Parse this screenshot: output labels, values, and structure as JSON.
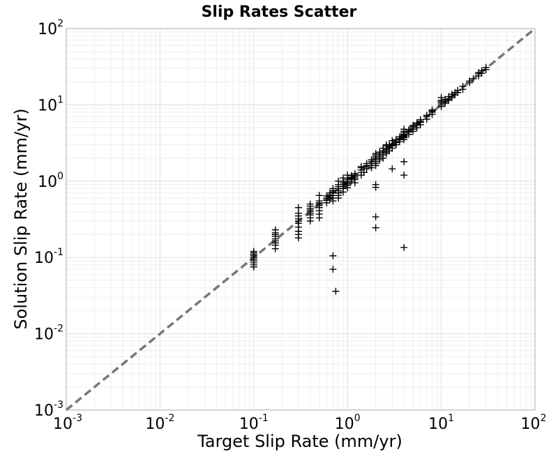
{
  "chart_data": {
    "type": "scatter",
    "title": "Slip Rates Scatter",
    "xlabel": "Target Slip Rate (mm/yr)",
    "ylabel": "Solution Slip Rate (mm/yr)",
    "xscale": "log",
    "yscale": "log",
    "xlim": [
      0.001,
      100
    ],
    "ylim": [
      0.001,
      100
    ],
    "grid": true,
    "legend": "none",
    "marker": "plus",
    "x_ticks": [
      {
        "value": 0.001,
        "base": "10",
        "exp": "-3"
      },
      {
        "value": 0.01,
        "base": "10",
        "exp": "-2"
      },
      {
        "value": 0.1,
        "base": "10",
        "exp": "-1"
      },
      {
        "value": 1,
        "base": "10",
        "exp": "0"
      },
      {
        "value": 10,
        "base": "10",
        "exp": "1"
      },
      {
        "value": 100,
        "base": "10",
        "exp": "2"
      }
    ],
    "y_ticks": [
      {
        "value": 0.001,
        "base": "10",
        "exp": "-3"
      },
      {
        "value": 0.01,
        "base": "10",
        "exp": "-2"
      },
      {
        "value": 0.1,
        "base": "10",
        "exp": "-1"
      },
      {
        "value": 1,
        "base": "10",
        "exp": "0"
      },
      {
        "value": 10,
        "base": "10",
        "exp": "1"
      },
      {
        "value": 100,
        "base": "10",
        "exp": "2"
      }
    ],
    "reference_line": {
      "x": [
        0.001,
        100
      ],
      "y": [
        0.001,
        100
      ],
      "style": "dashed",
      "color": "#777777"
    },
    "colors": {
      "points": "#000000",
      "reference_line": "#777777",
      "grid": "#e6e6e6",
      "axes": "#aaaaaa"
    },
    "series": [
      {
        "x": [
          0.1,
          0.1,
          0.1,
          0.1,
          0.1,
          0.1,
          0.1,
          0.1,
          0.1,
          0.1,
          0.17,
          0.17,
          0.17,
          0.17,
          0.17,
          0.17,
          0.17,
          0.17,
          0.17,
          0.3,
          0.3,
          0.3,
          0.3,
          0.3,
          0.3,
          0.3,
          0.3,
          0.3,
          0.3,
          0.4,
          0.4,
          0.4,
          0.4,
          0.4,
          0.4,
          0.4,
          0.4,
          0.4,
          0.5,
          0.5,
          0.5,
          0.5,
          0.5,
          0.5,
          0.5,
          0.5,
          0.5,
          0.6,
          0.6,
          0.6,
          0.6,
          0.65,
          0.65,
          0.65,
          0.65,
          0.7,
          0.7,
          0.7,
          0.7,
          0.7,
          0.7,
          0.7,
          0.8,
          0.8,
          0.8,
          0.8,
          0.8,
          0.8,
          0.8,
          0.8,
          0.9,
          0.9,
          0.9,
          0.9,
          0.9,
          0.9,
          0.9,
          1.0,
          1.0,
          1.0,
          1.0,
          1.0,
          1.0,
          1.0,
          1.0,
          1.1,
          1.1,
          1.1,
          1.1,
          1.2,
          1.2,
          1.2,
          1.2,
          1.2,
          1.4,
          1.4,
          1.4,
          1.4,
          1.4,
          1.6,
          1.6,
          1.6,
          1.6,
          1.8,
          1.8,
          1.8,
          1.8,
          1.8,
          2.0,
          2.0,
          2.0,
          2.0,
          2.0,
          2.0,
          2.0,
          2.0,
          2.0,
          2.2,
          2.2,
          2.2,
          2.2,
          2.2,
          2.4,
          2.4,
          2.4,
          2.4,
          2.4,
          2.6,
          2.6,
          2.6,
          2.6,
          2.6,
          2.6,
          2.8,
          2.8,
          2.8,
          2.8,
          3.0,
          3.0,
          3.0,
          3.0,
          3.0,
          3.3,
          3.3,
          3.3,
          3.3,
          3.6,
          3.6,
          3.6,
          3.6,
          4.0,
          4.0,
          4.0,
          4.0,
          4.0,
          4.0,
          4.0,
          4.0,
          4.0,
          4.5,
          4.5,
          4.5,
          4.5,
          5.0,
          5.0,
          5.0,
          5.0,
          5.0,
          5.5,
          5.5,
          5.5,
          5.5,
          6.0,
          6.0,
          6.0,
          6.0,
          7.0,
          7.0,
          7.0,
          8.0,
          8.0,
          8.0,
          8.0,
          10.0,
          10.0,
          10.0,
          10.0,
          10.0,
          10.0,
          11.0,
          11.0,
          11.0,
          12.0,
          12.0,
          12.0,
          13.0,
          13.0,
          13.0,
          14.0,
          14.0,
          15.0,
          15.0,
          17.0,
          17.0,
          20.0,
          20.0,
          22.0,
          25.0,
          25.0,
          25.0,
          27.0,
          27.0,
          30.0,
          30.0,
          0.7,
          0.7,
          0.75,
          2.0,
          2.0,
          4.0,
          4.0,
          4.0,
          3.0,
          2.0,
          1.5,
          1.2
        ],
        "y": [
          0.08,
          0.085,
          0.09,
          0.095,
          0.1,
          0.105,
          0.11,
          0.115,
          0.12,
          0.075,
          0.13,
          0.145,
          0.155,
          0.165,
          0.175,
          0.19,
          0.2,
          0.21,
          0.23,
          0.18,
          0.2,
          0.22,
          0.25,
          0.28,
          0.3,
          0.32,
          0.35,
          0.38,
          0.45,
          0.3,
          0.33,
          0.36,
          0.38,
          0.4,
          0.42,
          0.44,
          0.47,
          0.5,
          0.33,
          0.37,
          0.41,
          0.45,
          0.48,
          0.5,
          0.52,
          0.55,
          0.65,
          0.52,
          0.56,
          0.6,
          0.64,
          0.58,
          0.62,
          0.66,
          0.7,
          0.55,
          0.6,
          0.65,
          0.7,
          0.72,
          0.75,
          0.8,
          0.6,
          0.65,
          0.7,
          0.75,
          0.8,
          0.85,
          0.9,
          1.0,
          0.72,
          0.8,
          0.85,
          0.9,
          0.95,
          1.0,
          1.1,
          0.82,
          0.88,
          0.92,
          0.96,
          1.0,
          1.05,
          1.1,
          1.2,
          1.0,
          1.08,
          1.12,
          1.18,
          1.05,
          1.1,
          1.15,
          1.2,
          1.25,
          1.2,
          1.3,
          1.4,
          1.5,
          1.55,
          1.45,
          1.55,
          1.6,
          1.7,
          1.5,
          1.6,
          1.7,
          1.8,
          1.9,
          0.9,
          1.6,
          1.7,
          1.8,
          1.9,
          2.0,
          2.1,
          2.2,
          2.3,
          1.9,
          2.0,
          2.1,
          2.2,
          2.4,
          2.0,
          2.2,
          2.4,
          2.5,
          2.7,
          2.3,
          2.4,
          2.6,
          2.7,
          2.9,
          3.0,
          2.5,
          2.7,
          2.8,
          3.0,
          2.7,
          2.9,
          3.0,
          3.1,
          3.4,
          3.0,
          3.2,
          3.3,
          3.5,
          3.3,
          3.5,
          3.6,
          3.8,
          3.5,
          3.7,
          3.8,
          3.9,
          4.0,
          4.1,
          4.3,
          4.5,
          4.8,
          4.1,
          4.4,
          4.5,
          4.7,
          4.5,
          4.8,
          5.0,
          5.2,
          5.4,
          5.0,
          5.4,
          5.6,
          5.8,
          5.5,
          5.9,
          6.1,
          6.4,
          6.5,
          7.0,
          7.3,
          7.5,
          8.0,
          8.3,
          8.6,
          9.5,
          10.0,
          10.5,
          11.0,
          11.5,
          12.5,
          10.5,
          11.0,
          11.8,
          11.5,
          12.0,
          12.8,
          12.5,
          13.0,
          13.8,
          13.5,
          14.5,
          14.5,
          15.5,
          16.0,
          17.5,
          19.5,
          20.5,
          22.0,
          24.0,
          25.5,
          26.5,
          26.0,
          28.0,
          29.0,
          31.0,
          0.105,
          0.07,
          0.036,
          0.34,
          0.245,
          0.135,
          1.2,
          1.8,
          1.45,
          0.83,
          1.3,
          0.95
        ]
      }
    ]
  }
}
